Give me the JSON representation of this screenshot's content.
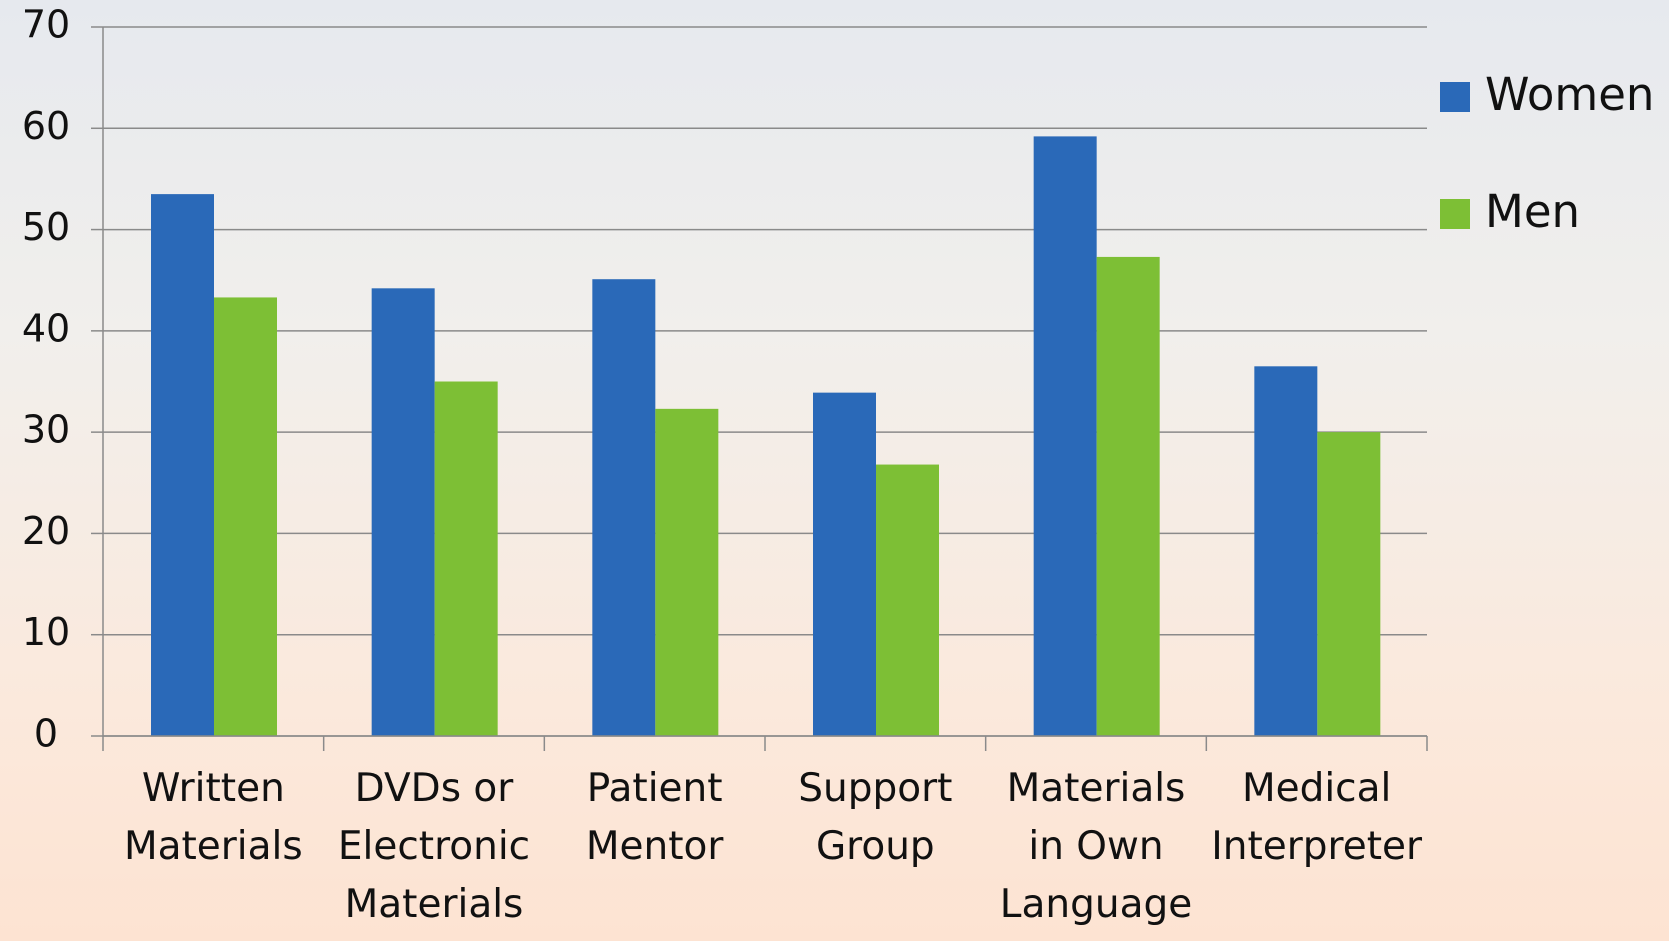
{
  "chart_data": {
    "type": "bar",
    "categories": [
      "Written Materials",
      "DVDs or Electronic Materials",
      "Patient Mentor",
      "Support Group",
      "Materials in Own Language",
      "Medical Interpreter"
    ],
    "series": [
      {
        "name": "Women",
        "color": "#2a69b8",
        "values": [
          53.5,
          44.2,
          45.1,
          33.9,
          59.2,
          36.5
        ]
      },
      {
        "name": "Men",
        "color": "#7dbf35",
        "values": [
          43.3,
          35,
          32.3,
          26.8,
          47.3,
          30
        ]
      }
    ],
    "ylim": [
      0,
      70
    ],
    "yticks": [
      0,
      10,
      20,
      30,
      40,
      50,
      60,
      70
    ],
    "grid": true,
    "legend": "right"
  }
}
